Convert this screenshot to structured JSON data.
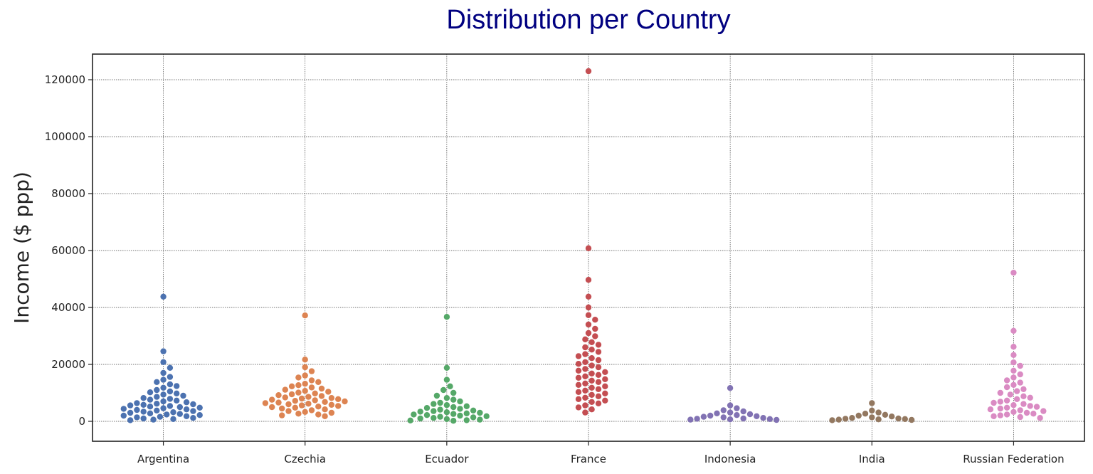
{
  "chart_data": {
    "type": "scatter",
    "subtype": "swarm",
    "title": "Distribution per Country",
    "xlabel": "",
    "ylabel": "Income ($ ppp)",
    "ylim": [
      -7000,
      129000
    ],
    "yticks": [
      0,
      20000,
      40000,
      60000,
      80000,
      100000,
      120000
    ],
    "grid": true,
    "categories": [
      "Argentina",
      "Czechia",
      "Ecuador",
      "France",
      "Indonesia",
      "India",
      "Russian Federation"
    ],
    "series": [
      {
        "category": "Argentina",
        "color": "#4c72b0",
        "values": [
          43800,
          24600,
          20800,
          18800,
          17000,
          15600,
          14600,
          13800,
          13000,
          12400,
          11800,
          11000,
          10500,
          10200,
          9800,
          9400,
          9000,
          8600,
          8200,
          7900,
          7600,
          7300,
          7000,
          6700,
          6400,
          6200,
          6000,
          5800,
          5600,
          5400,
          5200,
          5000,
          4800,
          4600,
          4400,
          4200,
          4000,
          3800,
          3600,
          3400,
          3200,
          3000,
          2800,
          2600,
          2400,
          2200,
          2000,
          1800,
          1600,
          1400,
          1200,
          1000,
          800,
          600,
          400
        ]
      },
      {
        "category": "Czechia",
        "color": "#dd8452",
        "values": [
          37200,
          21700,
          19000,
          17600,
          16100,
          15400,
          14400,
          13800,
          13200,
          12700,
          12300,
          11900,
          11500,
          11100,
          10700,
          10400,
          10100,
          9800,
          9500,
          9200,
          8900,
          8600,
          8400,
          8200,
          8000,
          7800,
          7600,
          7400,
          7200,
          7000,
          6800,
          6600,
          6400,
          6200,
          6000,
          5800,
          5600,
          5400,
          5200,
          5000,
          4800,
          4500,
          4200,
          3900,
          3600,
          3300,
          3000,
          2700,
          2400,
          2100,
          1800
        ]
      },
      {
        "category": "Ecuador",
        "color": "#55a868",
        "values": [
          36700,
          18800,
          14600,
          12300,
          11000,
          10000,
          9000,
          8200,
          7600,
          7000,
          6500,
          6100,
          5700,
          5300,
          5000,
          4700,
          4400,
          4100,
          3800,
          3600,
          3400,
          3200,
          3000,
          2800,
          2600,
          2400,
          2200,
          2000,
          1800,
          1600,
          1400,
          1200,
          1000,
          800,
          600,
          400,
          300,
          200
        ]
      },
      {
        "category": "France",
        "color": "#c44e52",
        "values": [
          123000,
          60800,
          49700,
          43800,
          40000,
          37300,
          35700,
          34000,
          32500,
          31000,
          29900,
          28800,
          27800,
          26900,
          26000,
          25200,
          24400,
          23600,
          22900,
          22200,
          21500,
          20800,
          20200,
          19600,
          19000,
          18400,
          17800,
          17300,
          16800,
          16300,
          15800,
          15300,
          14800,
          14300,
          13800,
          13300,
          12800,
          12300,
          11800,
          11300,
          10800,
          10300,
          9800,
          9300,
          8800,
          8300,
          7800,
          7300,
          6800,
          6300,
          5600,
          4900,
          4200,
          3100
        ]
      },
      {
        "category": "Indonesia",
        "color": "#8172b3",
        "values": [
          11700,
          5600,
          4600,
          3900,
          3500,
          3100,
          2800,
          2500,
          2200,
          2000,
          1800,
          1600,
          1400,
          1200,
          1000,
          900,
          800,
          700,
          600,
          500
        ]
      },
      {
        "category": "India",
        "color": "#937860",
        "values": [
          6400,
          3800,
          3100,
          2700,
          2300,
          2000,
          1700,
          1400,
          1200,
          1000,
          900,
          800,
          700,
          600,
          500,
          400
        ]
      },
      {
        "category": "Russian Federation",
        "color": "#da8bc3",
        "values": [
          52200,
          31800,
          26200,
          23300,
          20700,
          19500,
          17800,
          16500,
          15400,
          14400,
          13600,
          12800,
          12000,
          11300,
          10600,
          10000,
          9400,
          8800,
          8300,
          7800,
          7300,
          6900,
          6500,
          6100,
          5700,
          5400,
          5100,
          4800,
          4500,
          4200,
          3900,
          3600,
          3300,
          3000,
          2700,
          2400,
          2100,
          1800,
          1500,
          1200
        ]
      }
    ],
    "title_color": "#000080"
  }
}
